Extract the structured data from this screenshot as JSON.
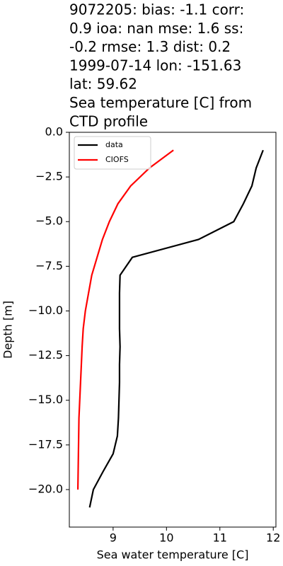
{
  "chart_data": {
    "type": "line",
    "title": [
      "9072205: bias: -1.1  corr:",
      "0.9  ioa: nan  mse: 1.6  ss:",
      "-0.2  rmse: 1.3  dist: 0.2",
      "1999-07-14 lon: -151.63",
      "lat: 59.62",
      "Sea temperature [C] from",
      "CTD profile"
    ],
    "xlabel": "Sea water temperature [C]",
    "ylabel": "Depth [m]",
    "xlim": [
      8.18,
      12.05
    ],
    "ylim": [
      -22.1,
      0
    ],
    "xticks": [
      9,
      10,
      11,
      12
    ],
    "yticks": [
      {
        "value": 0,
        "label": "0.0"
      },
      {
        "value": -2.5,
        "label": "−2.5"
      },
      {
        "value": -5,
        "label": "−5.0"
      },
      {
        "value": -7.5,
        "label": "−7.5"
      },
      {
        "value": -10,
        "label": "−10.0"
      },
      {
        "value": -12.5,
        "label": "−12.5"
      },
      {
        "value": -15,
        "label": "−15.0"
      },
      {
        "value": -17.5,
        "label": "−17.5"
      },
      {
        "value": -20,
        "label": "−20.0"
      }
    ],
    "legend": "upper left",
    "series": [
      {
        "name": "data",
        "color": "#000000",
        "x": [
          11.81,
          11.68,
          11.6,
          11.44,
          11.26,
          10.6,
          9.36,
          9.13,
          9.12,
          9.12,
          9.12,
          9.13,
          9.12,
          9.12,
          9.11,
          9.1,
          9.08,
          9.0,
          8.81,
          8.63,
          8.56
        ],
        "y": [
          -1,
          -2,
          -3,
          -4,
          -5,
          -6,
          -7,
          -8,
          -9,
          -10,
          -11,
          -12,
          -13,
          -14,
          -15,
          -16,
          -17,
          -18,
          -19,
          -20,
          -21
        ]
      },
      {
        "name": "CIOFS",
        "color": "#ff0000",
        "x": [
          10.13,
          9.68,
          9.33,
          9.09,
          8.93,
          8.8,
          8.7,
          8.6,
          8.54,
          8.48,
          8.44,
          8.42,
          8.39,
          8.36,
          8.35,
          8.34
        ],
        "y": [
          -1,
          -2,
          -3,
          -4,
          -5,
          -6,
          -7,
          -8,
          -9,
          -10,
          -11,
          -12,
          -14,
          -16,
          -18,
          -20
        ]
      }
    ]
  }
}
